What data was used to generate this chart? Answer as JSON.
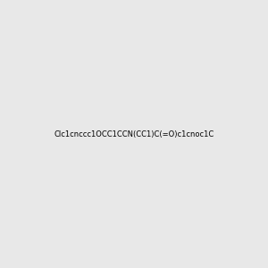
{
  "smiles": "Clc1cnccc1OCC1CCN(CC1)C(=O)c1cnoc1C",
  "title": "",
  "background_color": "#e8e8e8",
  "figure_size": [
    3.0,
    3.0
  ],
  "dpi": 100,
  "atom_colors": {
    "N": "#0000FF",
    "O": "#FF0000",
    "Cl": "#00CC00",
    "C": "#000000"
  }
}
